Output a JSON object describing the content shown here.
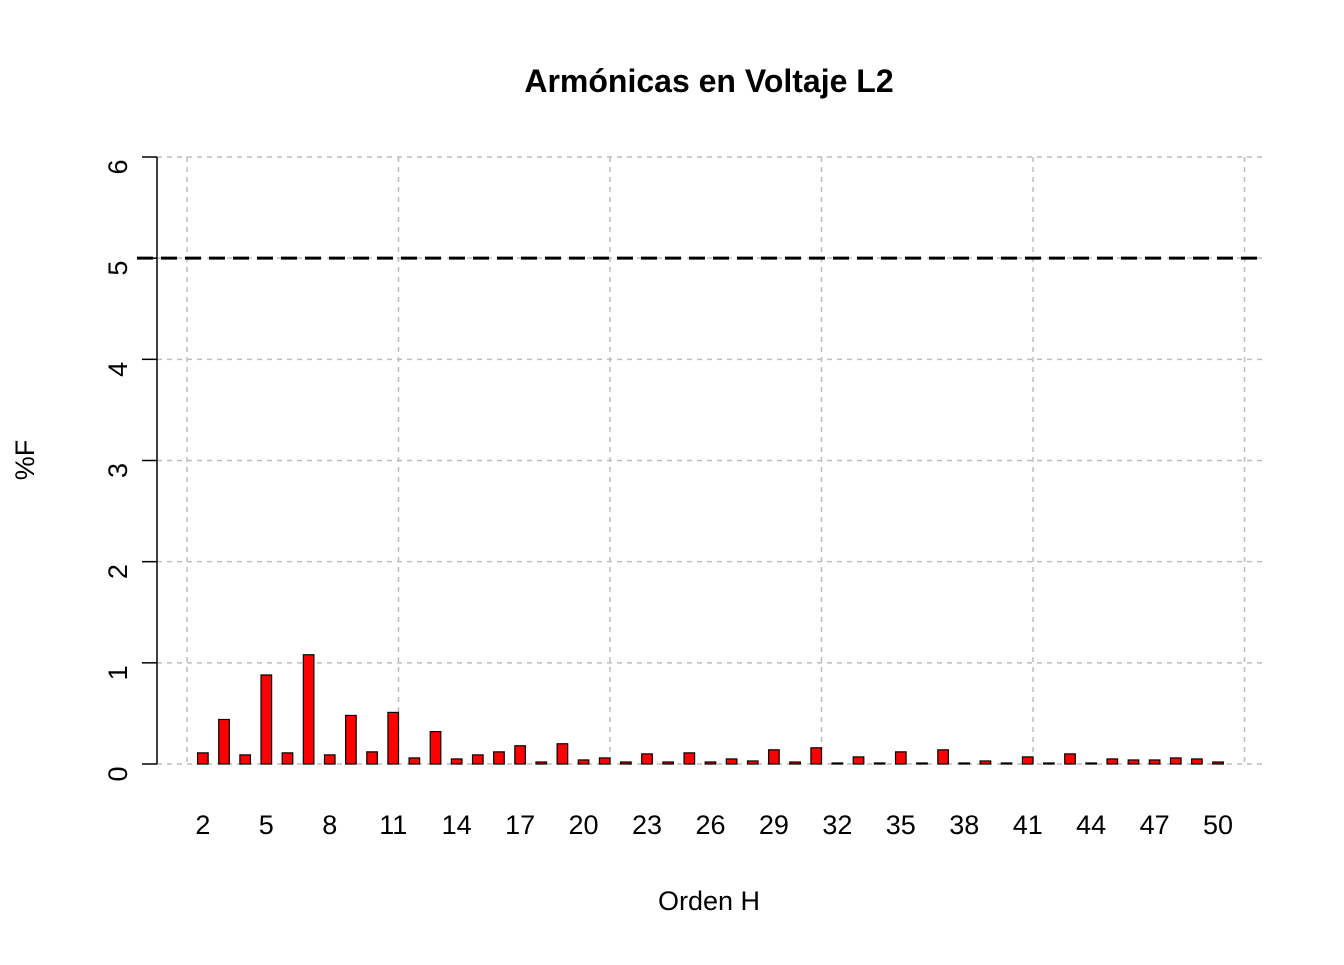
{
  "chart_data": {
    "type": "bar",
    "title": "Armónicas en Voltaje L2",
    "xlabel": "Orden H",
    "ylabel": "%F",
    "categories": [
      2,
      null,
      null,
      5,
      null,
      null,
      8,
      null,
      null,
      11,
      null,
      null,
      14,
      null,
      null,
      17,
      null,
      null,
      20,
      null,
      null,
      23,
      null,
      null,
      26,
      null,
      null,
      29,
      null,
      null,
      32,
      null,
      null,
      35,
      null,
      null,
      38,
      null,
      null,
      41,
      null,
      null,
      44,
      null,
      null,
      47,
      null,
      null,
      50
    ],
    "values": [
      0.11,
      0.44,
      0.09,
      0.88,
      0.11,
      1.08,
      0.09,
      0.48,
      0.12,
      0.51,
      0.06,
      0.32,
      0.05,
      0.09,
      0.12,
      0.18,
      0.02,
      0.2,
      0.04,
      0.06,
      0.02,
      0.1,
      0.02,
      0.11,
      0.02,
      0.05,
      0.03,
      0.14,
      0.02,
      0.16,
      0.01,
      0.07,
      0.01,
      0.12,
      0.01,
      0.14,
      0.01,
      0.03,
      0.01,
      0.07,
      0.01,
      0.1,
      0.01,
      0.05,
      0.04,
      0.04,
      0.06,
      0.05,
      0.02
    ],
    "color": "#ff0000",
    "ylim": [
      0,
      6
    ],
    "yticks": [
      0,
      1,
      2,
      3,
      4,
      5,
      6
    ],
    "grid": true,
    "reference_line": 5
  }
}
